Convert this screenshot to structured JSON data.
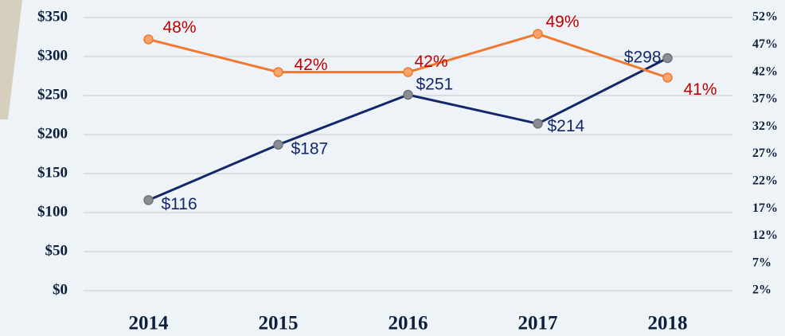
{
  "chart_data": {
    "type": "line",
    "categories": [
      "2014",
      "2015",
      "2016",
      "2017",
      "2018"
    ],
    "series": [
      {
        "color": "#14276b",
        "axis": "y",
        "values": [
          116,
          187,
          251,
          214,
          298
        ],
        "value_labels": [
          "$116",
          "$187",
          "$251",
          "$214",
          "$298"
        ]
      },
      {
        "color": "#f07830",
        "axis": "y2",
        "values": [
          48,
          42,
          42,
          49,
          41
        ],
        "value_labels": [
          "48%",
          "42%",
          "42%",
          "49%",
          "41%"
        ]
      }
    ],
    "ylim": [
      0,
      350
    ],
    "yticks": [
      {
        "value": 0,
        "label": "$0"
      },
      {
        "value": 50,
        "label": "$50"
      },
      {
        "value": 100,
        "label": "$100"
      },
      {
        "value": 150,
        "label": "$150"
      },
      {
        "value": 200,
        "label": "$200"
      },
      {
        "value": 250,
        "label": "$250"
      },
      {
        "value": 300,
        "label": "$300"
      },
      {
        "value": 350,
        "label": "$350"
      }
    ],
    "y2lim": [
      2,
      52
    ],
    "y2ticks": [
      {
        "value": 2,
        "label": "2%"
      },
      {
        "value": 7,
        "label": "7%"
      },
      {
        "value": 12,
        "label": "12%"
      },
      {
        "value": 17,
        "label": "17%"
      },
      {
        "value": 22,
        "label": "22%"
      },
      {
        "value": 27,
        "label": "27%"
      },
      {
        "value": 32,
        "label": "32%"
      },
      {
        "value": 37,
        "label": "37%"
      },
      {
        "value": 42,
        "label": "42%"
      },
      {
        "value": 47,
        "label": "47%"
      },
      {
        "value": 52,
        "label": "52%"
      }
    ],
    "grid": true
  }
}
